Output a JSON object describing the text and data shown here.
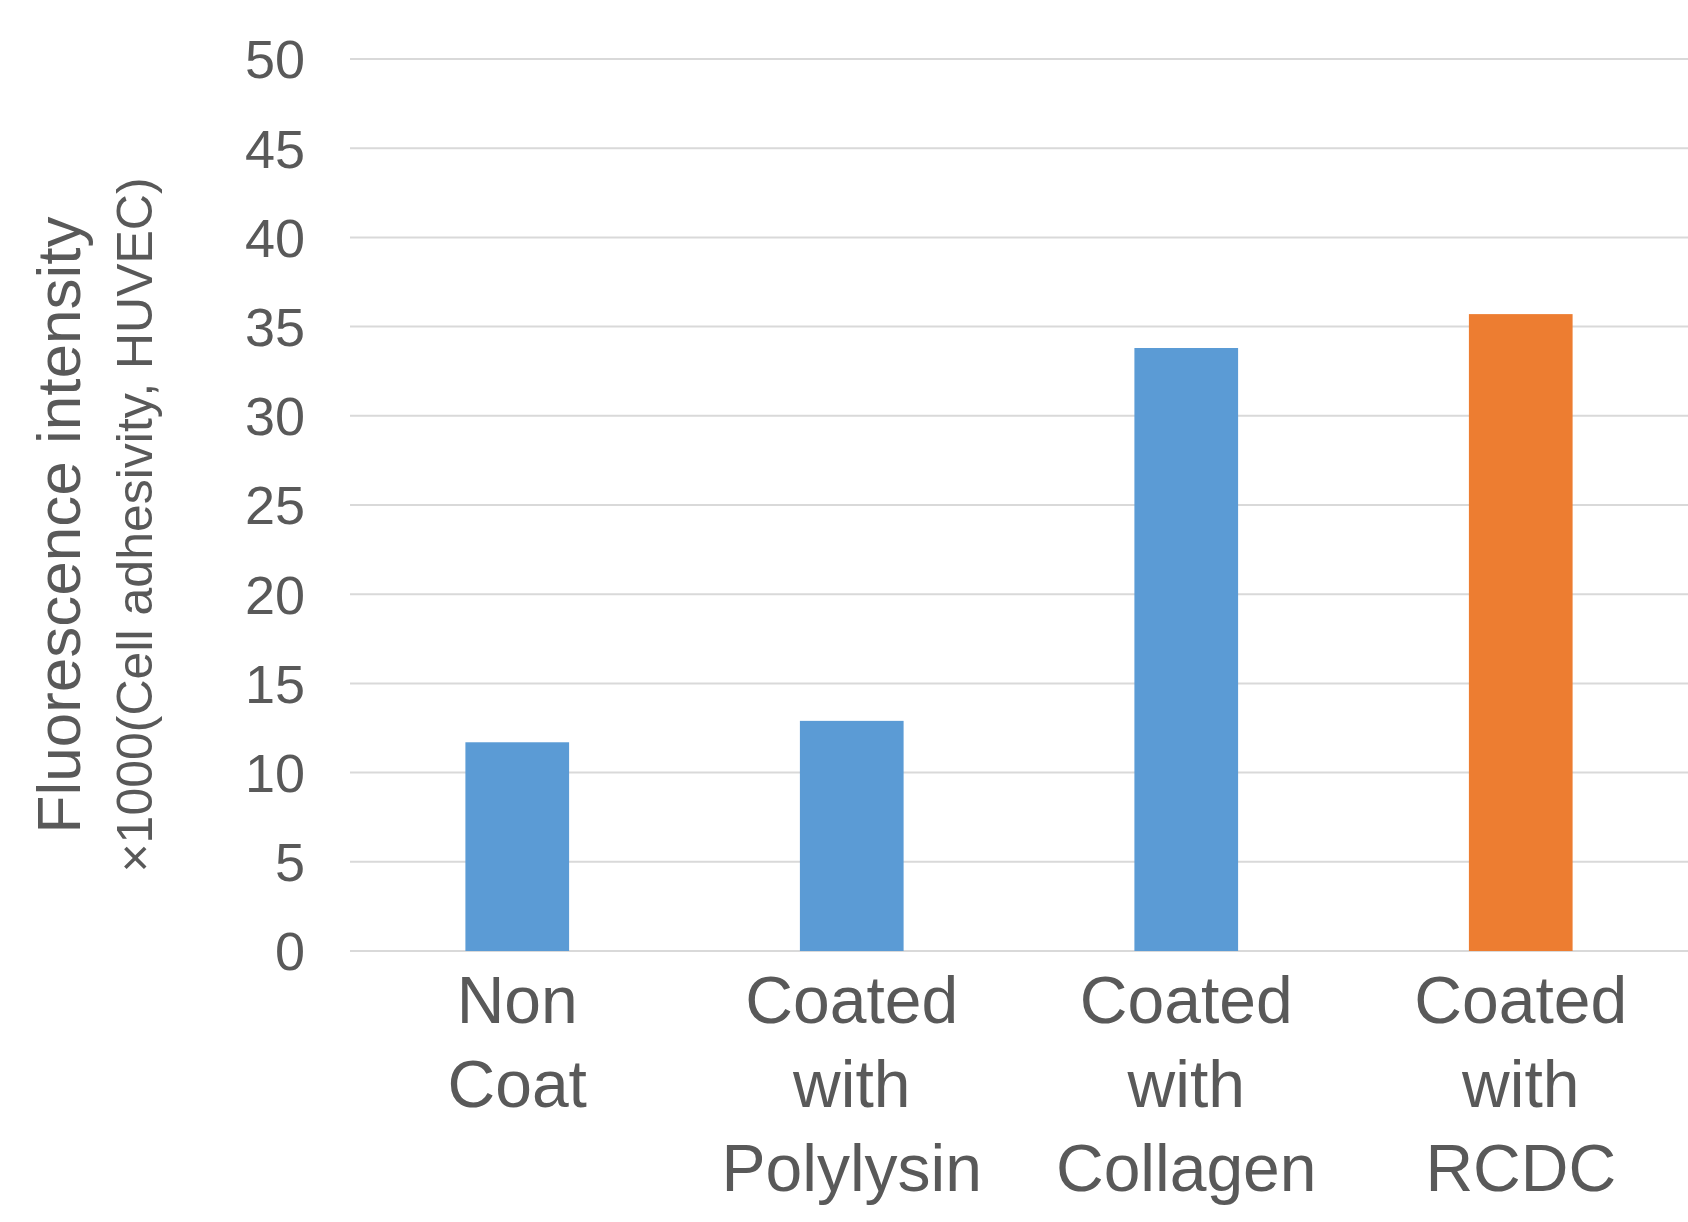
{
  "chart_data": {
    "type": "bar",
    "ylabel": "Fluorescence intensity\n×1000(Cell adhesivity, HUVEC)",
    "categories": [
      "Non Coat",
      "Coated with Polylysin",
      "Coated with Collagen",
      "Coated with RCDC"
    ],
    "values": [
      11.7,
      12.9,
      33.8,
      35.7
    ],
    "colors": [
      "#5b9bd5",
      "#5b9bd5",
      "#5b9bd5",
      "#ed7d31"
    ],
    "ylim": [
      0,
      50
    ],
    "yticks": [
      0,
      5,
      10,
      15,
      20,
      25,
      30,
      35,
      40,
      45,
      50
    ],
    "grid": "y"
  }
}
